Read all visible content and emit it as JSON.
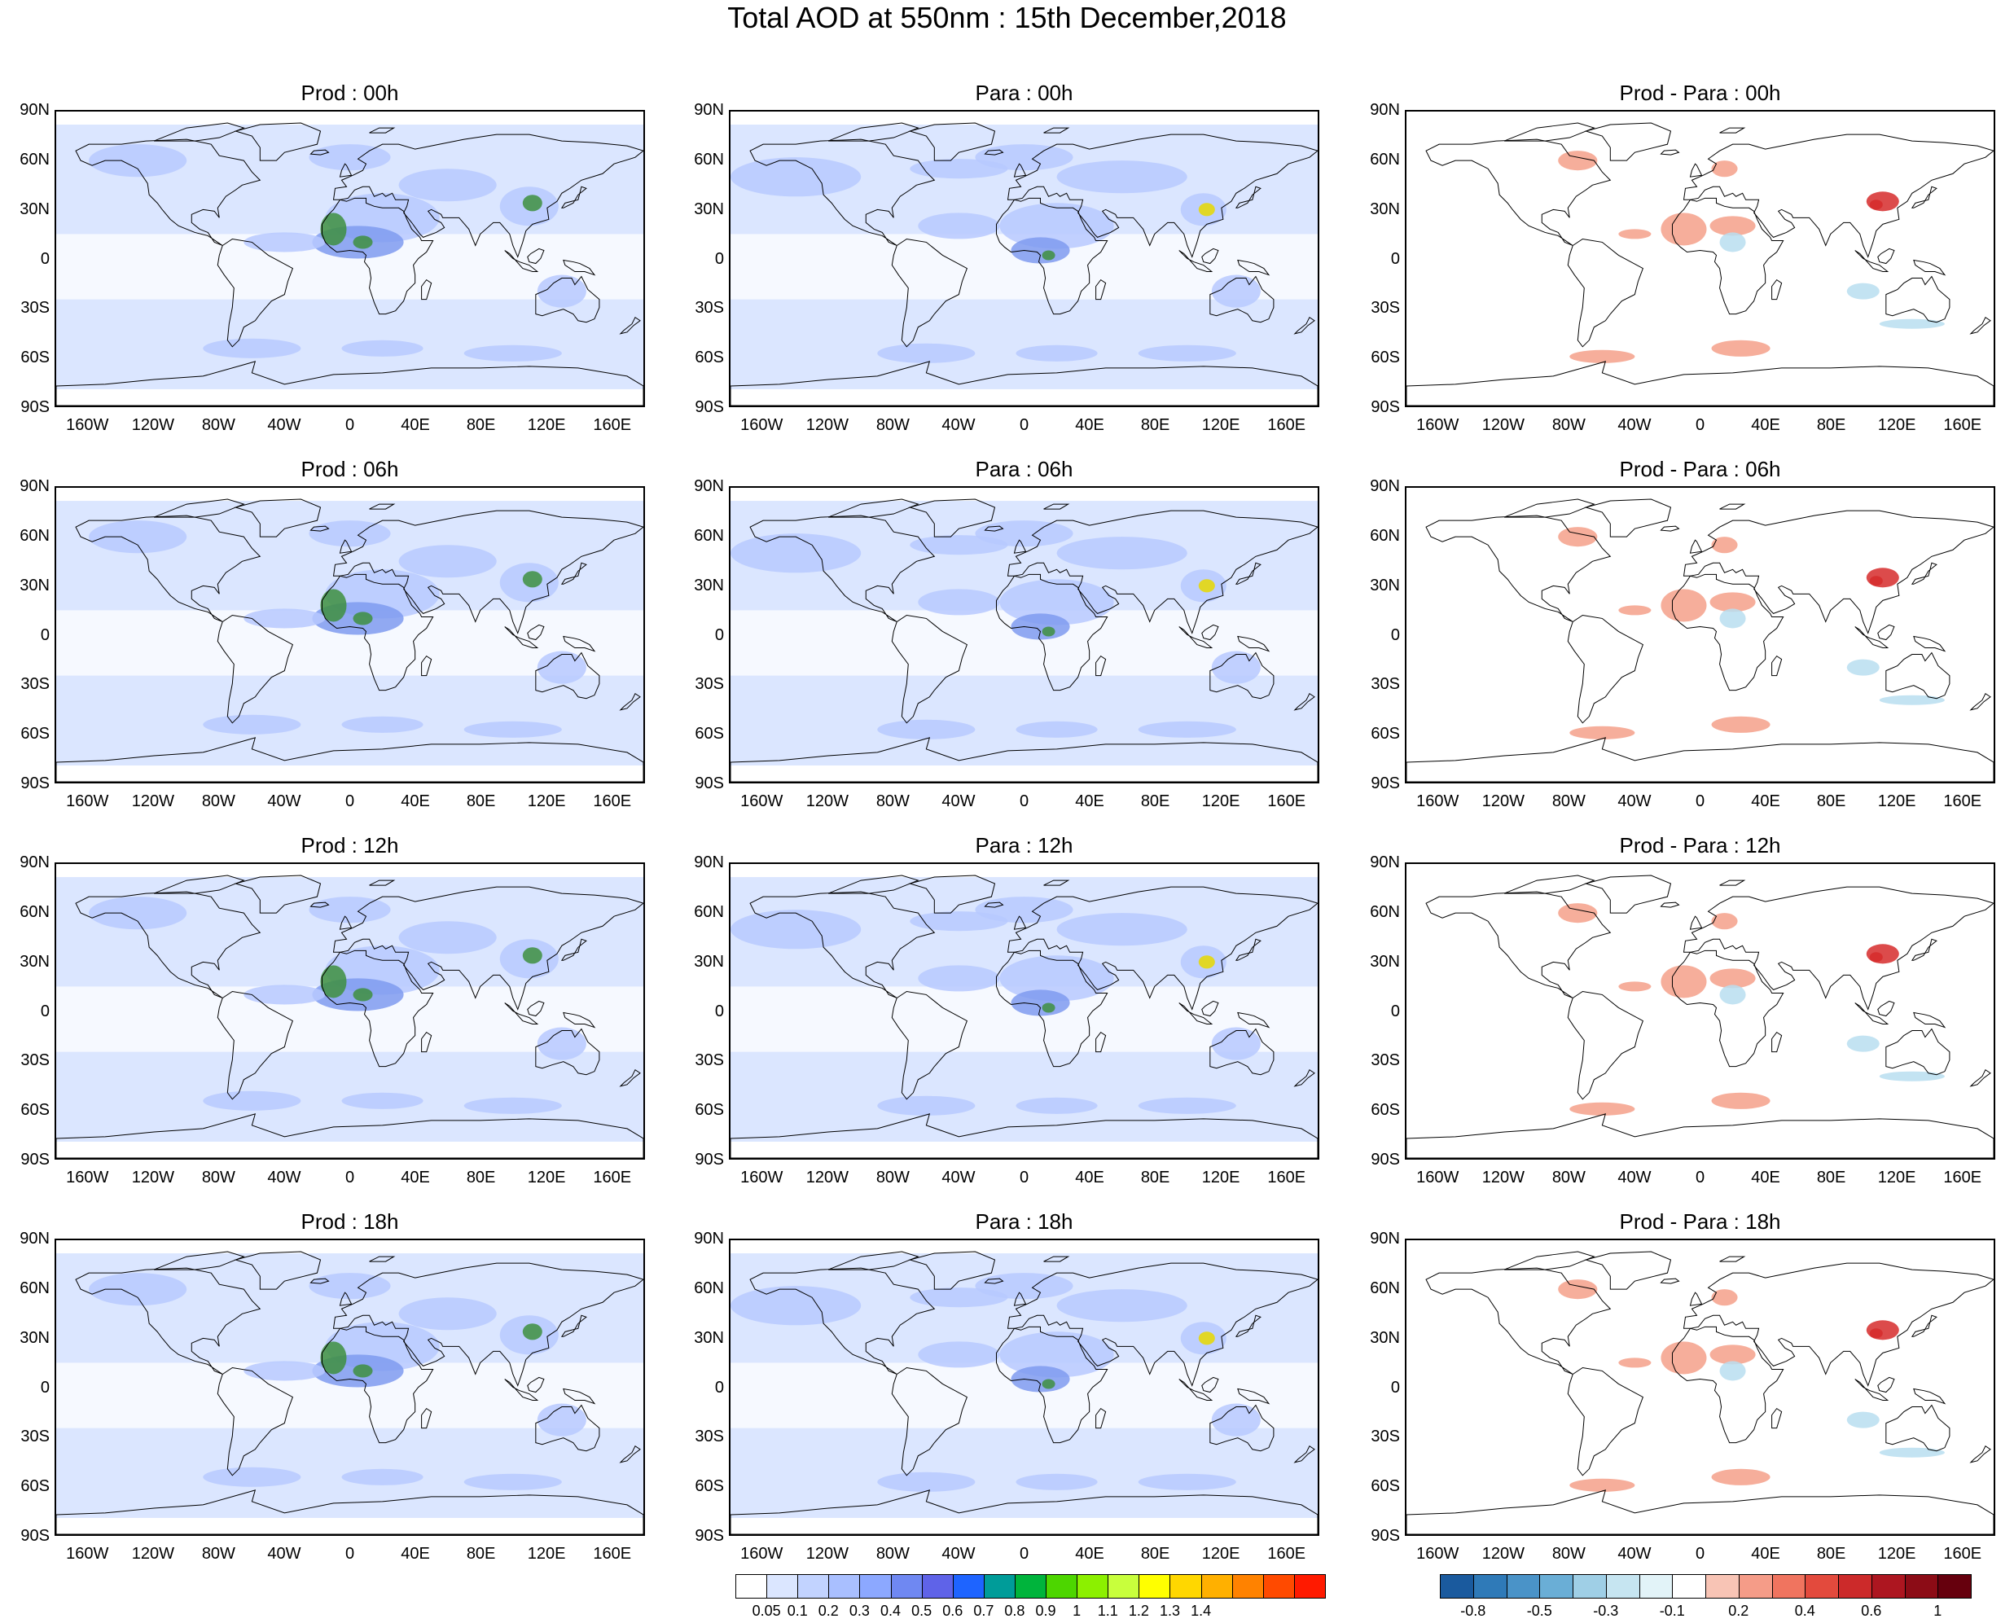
{
  "title": "Total AOD at 550nm : 15th December,2018",
  "columns": [
    {
      "kind": "prod",
      "titles": [
        "Prod : 00h",
        "Prod : 06h",
        "Prod : 12h",
        "Prod : 18h"
      ]
    },
    {
      "kind": "para",
      "titles": [
        "Para : 00h",
        "Para : 06h",
        "Para : 12h",
        "Para : 18h"
      ]
    },
    {
      "kind": "diff",
      "titles": [
        "Prod - Para : 00h",
        "Prod - Para : 06h",
        "Prod - Para : 12h",
        "Prod - Para : 18h"
      ]
    }
  ],
  "lat_labels": [
    "90N",
    "60N",
    "30N",
    "0",
    "30S",
    "60S",
    "90S"
  ],
  "lon_labels": [
    "160W",
    "120W",
    "80W",
    "40W",
    "0",
    "40E",
    "80E",
    "120E",
    "160E"
  ],
  "lon_values": [
    -160,
    -120,
    -80,
    -40,
    0,
    40,
    80,
    120,
    160
  ],
  "aod_colorbar": {
    "colors": [
      "#ffffff",
      "#dbe6ff",
      "#c2d3ff",
      "#a9bfff",
      "#8ca8ff",
      "#6f88f2",
      "#5f63e8",
      "#1e64ff",
      "#009c99",
      "#00b43c",
      "#4dd600",
      "#8cf000",
      "#c8ff3c",
      "#ffff00",
      "#ffd700",
      "#ffb000",
      "#ff8200",
      "#ff4a00",
      "#ff1a00"
    ],
    "ticks": [
      "0.05",
      "0.1",
      "0.2",
      "0.3",
      "0.4",
      "0.5",
      "0.6",
      "0.7",
      "0.8",
      "0.9",
      "1",
      "1.1",
      "1.2",
      "1.3",
      "1.4"
    ]
  },
  "diff_colorbar": {
    "colors": [
      "#1a5a9e",
      "#2f7ab8",
      "#4a93c8",
      "#6aaed6",
      "#9fcfe6",
      "#c6e5f1",
      "#e2f3f8",
      "#ffffff",
      "#f8c4b5",
      "#f59c88",
      "#f0745f",
      "#e34a3d",
      "#cc2a2a",
      "#ad1620",
      "#8c0c16",
      "#66000d"
    ],
    "ticks": [
      "-0.8",
      "-0.5",
      "-0.3",
      "-0.1",
      "0.2",
      "0.4",
      "0.6",
      "1"
    ]
  },
  "palette": {
    "aod_background": "#dbe6ff",
    "aod_medium": "#b7c9ff",
    "aod_strong": "#7f9bf0",
    "aod_peak": "#3e8f40",
    "aod_hot": "#e8d800",
    "diff_positive": "#f4a089",
    "diff_strong": "#d62c2c",
    "diff_negative": "#b9def0"
  }
}
